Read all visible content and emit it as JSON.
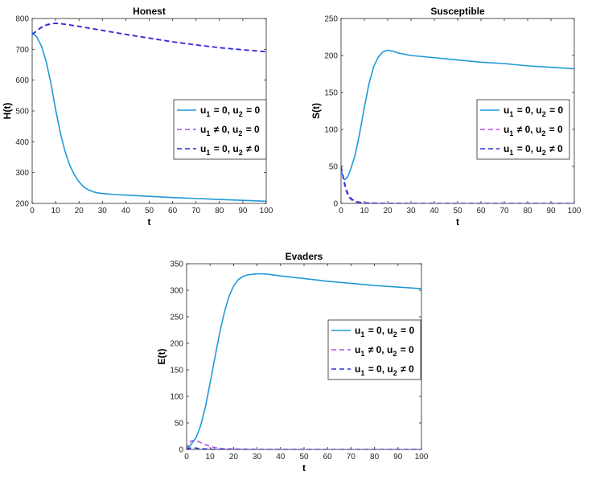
{
  "chart_data": [
    {
      "id": "honest",
      "type": "line",
      "title": "Honest",
      "xlabel": "t",
      "ylabel": "H(t)",
      "xlim": [
        0,
        100
      ],
      "ylim": [
        200,
        800
      ],
      "xticks": [
        0,
        10,
        20,
        30,
        40,
        50,
        60,
        70,
        80,
        90,
        100
      ],
      "yticks": [
        200,
        300,
        400,
        500,
        600,
        700,
        800
      ],
      "legend": "right",
      "series": [
        {
          "name": "u1 = 0, u2 = 0",
          "color": "#1f9ad6",
          "style": "solid",
          "x": [
            0,
            2,
            4,
            6,
            8,
            10,
            12,
            14,
            16,
            18,
            20,
            22,
            24,
            26,
            28,
            30,
            35,
            40,
            50,
            60,
            70,
            80,
            90,
            100
          ],
          "y": [
            755,
            740,
            710,
            660,
            590,
            505,
            430,
            370,
            325,
            293,
            270,
            254,
            244,
            238,
            234,
            232,
            229,
            227,
            223,
            219,
            216,
            213,
            210,
            207
          ]
        },
        {
          "name": "u1 ≠ 0, u2 = 0",
          "color": "#b34fe8",
          "style": "dashed",
          "x": [
            0,
            2,
            4,
            6,
            8,
            10,
            12,
            15,
            20,
            30,
            40,
            50,
            60,
            70,
            80,
            90,
            100
          ],
          "y": [
            748,
            762,
            773,
            780,
            784,
            785,
            784,
            781,
            775,
            762,
            749,
            737,
            725,
            715,
            706,
            699,
            693
          ]
        },
        {
          "name": "u1 = 0, u2 ≠ 0",
          "color": "#2630d8",
          "style": "dashed",
          "x": [
            0,
            2,
            4,
            6,
            8,
            10,
            12,
            15,
            20,
            30,
            40,
            50,
            60,
            70,
            80,
            90,
            100
          ],
          "y": [
            748,
            760,
            771,
            778,
            782,
            784,
            783,
            780,
            774,
            761,
            748,
            736,
            724,
            714,
            705,
            698,
            692
          ]
        }
      ]
    },
    {
      "id": "susceptible",
      "type": "line",
      "title": "Susceptible",
      "xlabel": "t",
      "ylabel": "S(t)",
      "xlim": [
        0,
        100
      ],
      "ylim": [
        0,
        250
      ],
      "xticks": [
        0,
        10,
        20,
        30,
        40,
        50,
        60,
        70,
        80,
        90,
        100
      ],
      "yticks": [
        0,
        50,
        100,
        150,
        200,
        250
      ],
      "legend": "right",
      "series": [
        {
          "name": "u1 = 0, u2 = 0",
          "color": "#1f9ad6",
          "style": "solid",
          "x": [
            0,
            0.5,
            1,
            1.5,
            2,
            3,
            4,
            6,
            8,
            10,
            12,
            14,
            16,
            18,
            20,
            22,
            25,
            30,
            40,
            50,
            60,
            70,
            80,
            90,
            100
          ],
          "y": [
            50,
            40,
            35,
            32,
            33,
            37,
            45,
            65,
            95,
            130,
            162,
            185,
            198,
            205,
            207,
            206,
            203,
            200,
            197,
            194,
            191,
            189,
            186,
            184,
            182
          ]
        },
        {
          "name": "u1 ≠ 0, u2 = 0",
          "color": "#b34fe8",
          "style": "dashed",
          "x": [
            0,
            1,
            2,
            3,
            4,
            5,
            6,
            8,
            10,
            15,
            20,
            30,
            50,
            100
          ],
          "y": [
            50,
            32,
            18,
            10,
            6,
            3.5,
            2,
            1,
            0.5,
            0.2,
            0.1,
            0,
            0,
            0
          ]
        },
        {
          "name": "u1 = 0, u2 ≠ 0",
          "color": "#2630d8",
          "style": "dashed",
          "x": [
            0,
            1,
            2,
            3,
            4,
            5,
            6,
            8,
            10,
            15,
            20,
            30,
            50,
            100
          ],
          "y": [
            50,
            35,
            22,
            13,
            8,
            5,
            3,
            1.5,
            0.8,
            0.3,
            0.1,
            0,
            0,
            0
          ]
        }
      ]
    },
    {
      "id": "evaders",
      "type": "line",
      "title": "Evaders",
      "xlabel": "t",
      "ylabel": "E(t)",
      "xlim": [
        0,
        100
      ],
      "ylim": [
        0,
        350
      ],
      "xticks": [
        0,
        10,
        20,
        30,
        40,
        50,
        60,
        70,
        80,
        90,
        100
      ],
      "yticks": [
        0,
        50,
        100,
        150,
        200,
        250,
        300,
        350
      ],
      "legend": "right",
      "series": [
        {
          "name": "u1 = 0, u2 = 0",
          "color": "#1f9ad6",
          "style": "solid",
          "x": [
            0,
            2,
            4,
            6,
            8,
            10,
            12,
            14,
            16,
            18,
            20,
            22,
            24,
            26,
            28,
            30,
            32,
            35,
            40,
            50,
            60,
            70,
            80,
            90,
            100
          ],
          "y": [
            0,
            10,
            22,
            45,
            80,
            125,
            172,
            218,
            257,
            288,
            308,
            320,
            326,
            329,
            330,
            331,
            331,
            330,
            327,
            322,
            317,
            313,
            309,
            306,
            303
          ]
        },
        {
          "name": "u1 ≠ 0, u2 = 0",
          "color": "#b34fe8",
          "style": "dashed",
          "x": [
            0,
            1,
            2,
            3,
            4,
            5,
            6,
            8,
            10,
            12,
            15,
            20,
            30,
            50,
            100
          ],
          "y": [
            0,
            12,
            16,
            17,
            16.5,
            15,
            13,
            9,
            6,
            3.5,
            1.8,
            0.8,
            0.2,
            0,
            0
          ]
        },
        {
          "name": "u1 = 0, u2 ≠ 0",
          "color": "#2630d8",
          "style": "dashed",
          "x": [
            0,
            1,
            2,
            3,
            4,
            5,
            6,
            8,
            10,
            15,
            20,
            30,
            50,
            100
          ],
          "y": [
            0,
            2,
            3,
            3,
            2.5,
            2,
            1.5,
            1,
            0.5,
            0.2,
            0.1,
            0,
            0,
            0
          ]
        }
      ]
    }
  ]
}
